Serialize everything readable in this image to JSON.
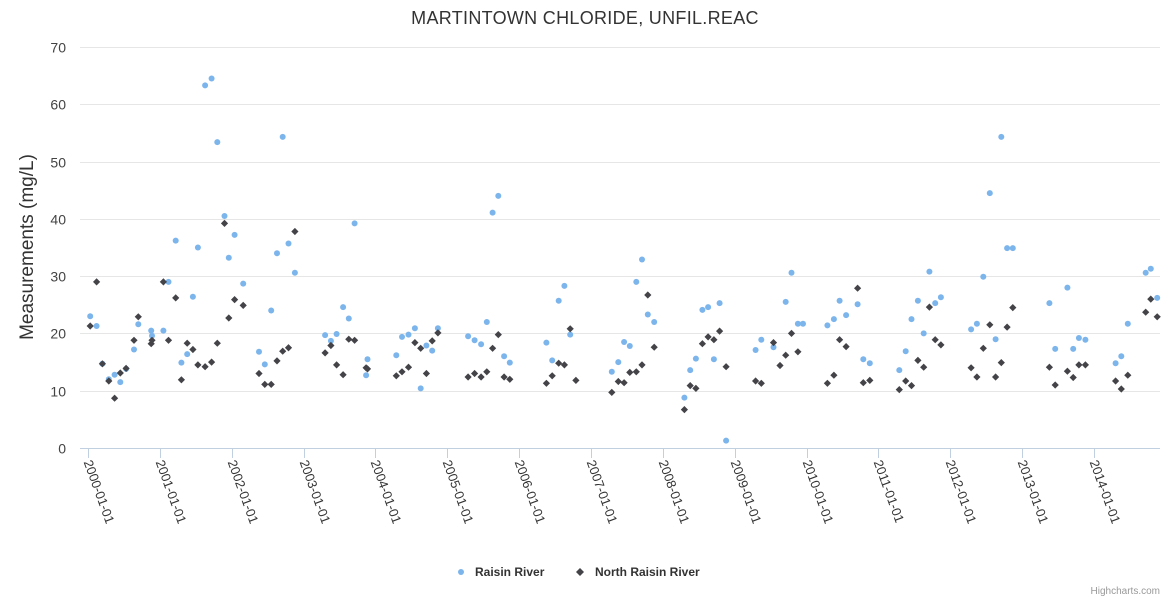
{
  "chart_data": {
    "type": "scatter",
    "title": "MARTINTOWN CHLORIDE, UNFIL.REAC",
    "ylabel": "Measurements (mg/L)",
    "xlabel": "",
    "ylim": [
      0,
      70
    ],
    "yticks": [
      0,
      10,
      20,
      30,
      40,
      50,
      60,
      70
    ],
    "xlim": [
      1999.9,
      2014.95
    ],
    "xticks": [
      {
        "value": 2000,
        "label": "2000-01-01"
      },
      {
        "value": 2001,
        "label": "2001-01-01"
      },
      {
        "value": 2002,
        "label": "2002-01-01"
      },
      {
        "value": 2003,
        "label": "2003-01-01"
      },
      {
        "value": 2004,
        "label": "2004-01-01"
      },
      {
        "value": 2005,
        "label": "2005-01-01"
      },
      {
        "value": 2006,
        "label": "2006-01-01"
      },
      {
        "value": 2007,
        "label": "2007-01-01"
      },
      {
        "value": 2008,
        "label": "2008-01-01"
      },
      {
        "value": 2009,
        "label": "2009-01-01"
      },
      {
        "value": 2010,
        "label": "2010-01-01"
      },
      {
        "value": 2011,
        "label": "2011-01-01"
      },
      {
        "value": 2012,
        "label": "2012-01-01"
      },
      {
        "value": 2013,
        "label": "2013-01-01"
      },
      {
        "value": 2014,
        "label": "2014-01-01"
      }
    ],
    "grid": true,
    "legend_position": "bottom-center",
    "series": [
      {
        "name": "Raisin River",
        "color": "#7cb5ec",
        "marker": "circle",
        "points": [
          [
            2000.03,
            23
          ],
          [
            2000.12,
            21.3
          ],
          [
            2000.2,
            14.7
          ],
          [
            2000.29,
            12
          ],
          [
            2000.37,
            12.8
          ],
          [
            2000.45,
            11.5
          ],
          [
            2000.53,
            13.8
          ],
          [
            2000.64,
            17.2
          ],
          [
            2000.7,
            21.6
          ],
          [
            2000.88,
            20.5
          ],
          [
            2000.89,
            19.6
          ],
          [
            2001.05,
            20.5
          ],
          [
            2001.12,
            29
          ],
          [
            2001.22,
            36.2
          ],
          [
            2001.3,
            14.9
          ],
          [
            2001.38,
            16.4
          ],
          [
            2001.46,
            26.4
          ],
          [
            2001.53,
            35
          ],
          [
            2001.63,
            63.3
          ],
          [
            2001.72,
            64.5
          ],
          [
            2001.8,
            53.4
          ],
          [
            2001.9,
            40.5
          ],
          [
            2001.96,
            33.2
          ],
          [
            2002.04,
            37.2
          ],
          [
            2002.16,
            28.7
          ],
          [
            2002.38,
            16.8
          ],
          [
            2002.46,
            14.6
          ],
          [
            2002.55,
            24
          ],
          [
            2002.63,
            34
          ],
          [
            2002.71,
            54.3
          ],
          [
            2002.79,
            35.7
          ],
          [
            2002.88,
            30.6
          ],
          [
            2003.3,
            19.7
          ],
          [
            2003.38,
            18.7
          ],
          [
            2003.46,
            19.9
          ],
          [
            2003.55,
            24.6
          ],
          [
            2003.63,
            22.6
          ],
          [
            2003.71,
            39.2
          ],
          [
            2003.87,
            12.7
          ],
          [
            2003.89,
            15.5
          ],
          [
            2004.29,
            16.2
          ],
          [
            2004.37,
            19.4
          ],
          [
            2004.46,
            19.8
          ],
          [
            2004.55,
            20.9
          ],
          [
            2004.63,
            10.4
          ],
          [
            2004.71,
            17.9
          ],
          [
            2004.79,
            17
          ],
          [
            2004.87,
            20.9
          ],
          [
            2005.29,
            19.5
          ],
          [
            2005.38,
            18.8
          ],
          [
            2005.47,
            18.1
          ],
          [
            2005.55,
            22
          ],
          [
            2005.63,
            41.1
          ],
          [
            2005.71,
            44
          ],
          [
            2005.79,
            16
          ],
          [
            2005.87,
            14.9
          ],
          [
            2006.38,
            18.4
          ],
          [
            2006.46,
            15.3
          ],
          [
            2006.55,
            25.7
          ],
          [
            2006.63,
            28.3
          ],
          [
            2006.71,
            19.8
          ],
          [
            2007.29,
            13.3
          ],
          [
            2007.38,
            15
          ],
          [
            2007.46,
            18.5
          ],
          [
            2007.54,
            17.8
          ],
          [
            2007.63,
            29
          ],
          [
            2007.71,
            32.9
          ],
          [
            2007.79,
            23.3
          ],
          [
            2007.88,
            22
          ],
          [
            2008.3,
            8.8
          ],
          [
            2008.38,
            13.6
          ],
          [
            2008.46,
            15.6
          ],
          [
            2008.55,
            24.1
          ],
          [
            2008.63,
            24.6
          ],
          [
            2008.71,
            15.5
          ],
          [
            2008.79,
            25.3
          ],
          [
            2008.88,
            1.3
          ],
          [
            2009.29,
            17.1
          ],
          [
            2009.37,
            18.9
          ],
          [
            2009.54,
            17.6
          ],
          [
            2009.71,
            25.5
          ],
          [
            2009.79,
            30.6
          ],
          [
            2009.88,
            21.7
          ],
          [
            2009.95,
            21.7
          ],
          [
            2010.29,
            21.4
          ],
          [
            2010.38,
            22.5
          ],
          [
            2010.46,
            25.7
          ],
          [
            2010.55,
            23.2
          ],
          [
            2010.71,
            25.1
          ],
          [
            2010.79,
            15.5
          ],
          [
            2010.88,
            14.8
          ],
          [
            2011.29,
            13.6
          ],
          [
            2011.38,
            16.9
          ],
          [
            2011.46,
            22.5
          ],
          [
            2011.55,
            25.7
          ],
          [
            2011.63,
            20
          ],
          [
            2011.71,
            30.8
          ],
          [
            2011.79,
            25.3
          ],
          [
            2011.87,
            26.3
          ],
          [
            2012.29,
            20.7
          ],
          [
            2012.37,
            21.7
          ],
          [
            2012.46,
            29.9
          ],
          [
            2012.55,
            44.5
          ],
          [
            2012.63,
            19
          ],
          [
            2012.71,
            54.3
          ],
          [
            2012.79,
            34.9
          ],
          [
            2012.87,
            34.9
          ],
          [
            2013.38,
            25.3
          ],
          [
            2013.46,
            17.3
          ],
          [
            2013.63,
            28
          ],
          [
            2013.71,
            17.3
          ],
          [
            2013.79,
            19.2
          ],
          [
            2013.88,
            18.9
          ],
          [
            2014.3,
            14.8
          ],
          [
            2014.38,
            16
          ],
          [
            2014.47,
            21.7
          ],
          [
            2014.72,
            30.6
          ],
          [
            2014.79,
            31.3
          ],
          [
            2014.88,
            26.2
          ]
        ]
      },
      {
        "name": "North Raisin River",
        "color": "#434348",
        "marker": "diamond",
        "points": [
          [
            2000.03,
            21.3
          ],
          [
            2000.12,
            29
          ],
          [
            2000.2,
            14.7
          ],
          [
            2000.29,
            11.7
          ],
          [
            2000.37,
            8.7
          ],
          [
            2000.45,
            13.1
          ],
          [
            2000.53,
            13.9
          ],
          [
            2000.64,
            18.8
          ],
          [
            2000.7,
            22.9
          ],
          [
            2000.88,
            18.2
          ],
          [
            2000.89,
            18.8
          ],
          [
            2001.05,
            29
          ],
          [
            2001.12,
            18.8
          ],
          [
            2001.22,
            26.2
          ],
          [
            2001.3,
            11.9
          ],
          [
            2001.38,
            18.3
          ],
          [
            2001.46,
            17.2
          ],
          [
            2001.53,
            14.5
          ],
          [
            2001.63,
            14.2
          ],
          [
            2001.72,
            15
          ],
          [
            2001.8,
            18.3
          ],
          [
            2001.9,
            39.2
          ],
          [
            2001.96,
            22.7
          ],
          [
            2002.04,
            25.9
          ],
          [
            2002.16,
            24.9
          ],
          [
            2002.38,
            13
          ],
          [
            2002.46,
            11.1
          ],
          [
            2002.55,
            11.1
          ],
          [
            2002.63,
            15.2
          ],
          [
            2002.71,
            16.9
          ],
          [
            2002.79,
            17.5
          ],
          [
            2002.88,
            37.8
          ],
          [
            2003.3,
            16.6
          ],
          [
            2003.38,
            17.9
          ],
          [
            2003.46,
            14.5
          ],
          [
            2003.55,
            12.8
          ],
          [
            2003.63,
            19
          ],
          [
            2003.71,
            18.8
          ],
          [
            2003.87,
            14
          ],
          [
            2003.89,
            13.8
          ],
          [
            2004.29,
            12.6
          ],
          [
            2004.37,
            13.3
          ],
          [
            2004.46,
            14.1
          ],
          [
            2004.55,
            18.4
          ],
          [
            2004.63,
            17.4
          ],
          [
            2004.71,
            13
          ],
          [
            2004.79,
            18.7
          ],
          [
            2004.87,
            20.1
          ],
          [
            2005.29,
            12.4
          ],
          [
            2005.38,
            13
          ],
          [
            2005.47,
            12.4
          ],
          [
            2005.55,
            13.3
          ],
          [
            2005.63,
            17.4
          ],
          [
            2005.71,
            19.8
          ],
          [
            2005.79,
            12.4
          ],
          [
            2005.87,
            12
          ],
          [
            2006.38,
            11.3
          ],
          [
            2006.46,
            12.6
          ],
          [
            2006.55,
            14.8
          ],
          [
            2006.63,
            14.5
          ],
          [
            2006.71,
            20.8
          ],
          [
            2006.79,
            11.8
          ],
          [
            2007.29,
            9.7
          ],
          [
            2007.38,
            11.6
          ],
          [
            2007.46,
            11.4
          ],
          [
            2007.54,
            13.2
          ],
          [
            2007.63,
            13.3
          ],
          [
            2007.71,
            14.5
          ],
          [
            2007.79,
            26.7
          ],
          [
            2007.88,
            17.6
          ],
          [
            2008.3,
            6.7
          ],
          [
            2008.38,
            10.9
          ],
          [
            2008.46,
            10.4
          ],
          [
            2008.55,
            18.2
          ],
          [
            2008.63,
            19.4
          ],
          [
            2008.71,
            18.9
          ],
          [
            2008.79,
            20.4
          ],
          [
            2008.88,
            14.2
          ],
          [
            2009.29,
            11.7
          ],
          [
            2009.37,
            11.3
          ],
          [
            2009.54,
            18.4
          ],
          [
            2009.63,
            14.4
          ],
          [
            2009.71,
            16.2
          ],
          [
            2009.79,
            20
          ],
          [
            2009.88,
            16.8
          ],
          [
            2010.29,
            11.3
          ],
          [
            2010.38,
            12.7
          ],
          [
            2010.46,
            18.9
          ],
          [
            2010.55,
            17.7
          ],
          [
            2010.71,
            27.9
          ],
          [
            2010.79,
            11.4
          ],
          [
            2010.88,
            11.8
          ],
          [
            2011.29,
            10.2
          ],
          [
            2011.38,
            11.7
          ],
          [
            2011.46,
            10.9
          ],
          [
            2011.55,
            15.3
          ],
          [
            2011.63,
            14.1
          ],
          [
            2011.71,
            24.6
          ],
          [
            2011.79,
            18.9
          ],
          [
            2011.87,
            18
          ],
          [
            2012.29,
            14
          ],
          [
            2012.37,
            12.4
          ],
          [
            2012.46,
            17.4
          ],
          [
            2012.55,
            21.5
          ],
          [
            2012.63,
            12.4
          ],
          [
            2012.71,
            14.9
          ],
          [
            2012.79,
            21.1
          ],
          [
            2012.87,
            24.5
          ],
          [
            2013.38,
            14.1
          ],
          [
            2013.46,
            11
          ],
          [
            2013.63,
            13.4
          ],
          [
            2013.71,
            12.3
          ],
          [
            2013.79,
            14.5
          ],
          [
            2013.88,
            14.5
          ],
          [
            2014.3,
            11.7
          ],
          [
            2014.38,
            10.3
          ],
          [
            2014.47,
            12.7
          ],
          [
            2014.72,
            23.7
          ],
          [
            2014.79,
            26
          ],
          [
            2014.88,
            22.9
          ]
        ]
      }
    ]
  },
  "credits": "Highcharts.com"
}
